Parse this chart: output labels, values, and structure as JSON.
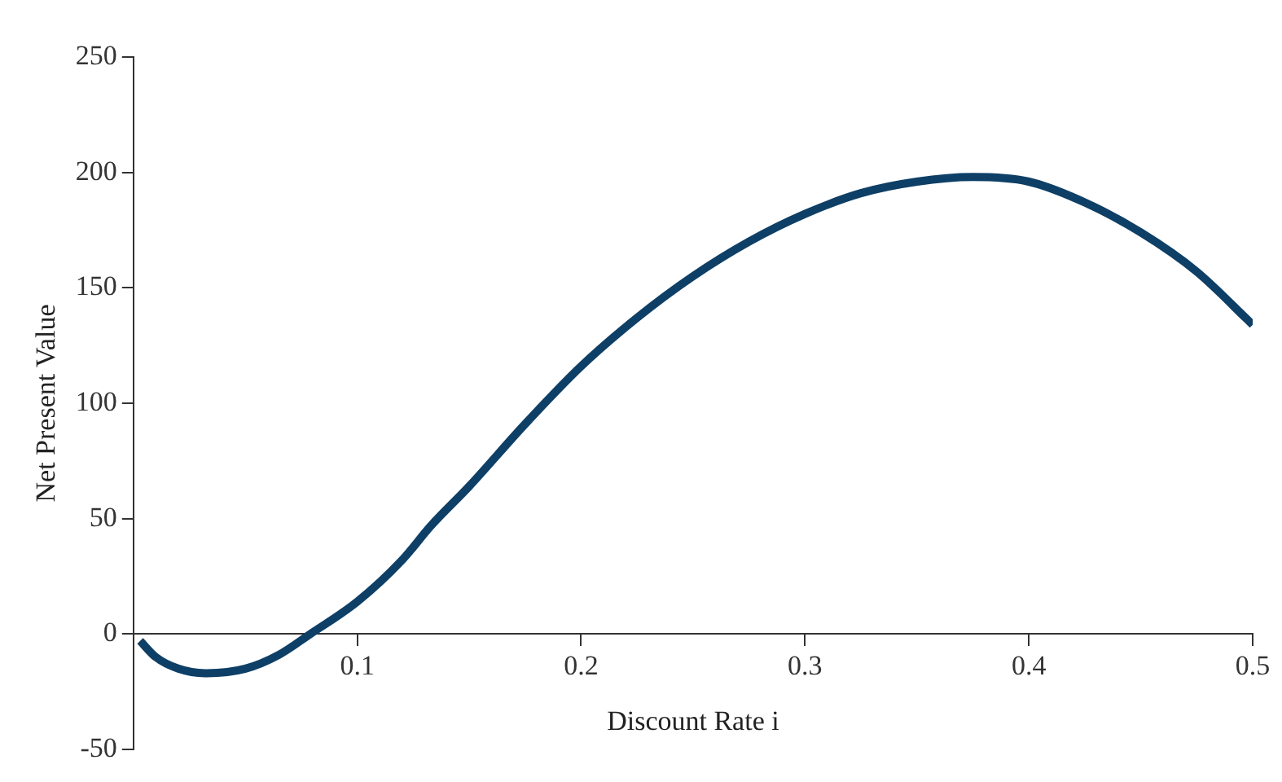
{
  "chart_data": {
    "type": "line",
    "xlabel": "Discount Rate i",
    "ylabel": "Net Present Value",
    "xlim": [
      0,
      0.5
    ],
    "xticks": [
      0.1,
      0.2,
      0.3,
      0.4,
      0.5
    ],
    "ylim": [
      -50,
      250
    ],
    "yticks": [
      -50,
      0,
      50,
      100,
      150,
      200,
      250
    ],
    "grid": false,
    "marker": "none",
    "line_style": "solid",
    "series": [
      {
        "color": "#0e3f66",
        "x": [
          0.003,
          0.01,
          0.02,
          0.032,
          0.05,
          0.065,
          0.079,
          0.1,
          0.12,
          0.133,
          0.15,
          0.175,
          0.2,
          0.225,
          0.25,
          0.275,
          0.3,
          0.325,
          0.35,
          0.375,
          0.4,
          0.425,
          0.45,
          0.475,
          0.5
        ],
        "values": [
          -3,
          -10,
          -15,
          -17,
          -15,
          -9,
          0,
          14,
          32,
          47,
          64,
          91,
          116,
          137,
          155,
          170,
          182,
          191,
          196,
          198,
          196,
          187,
          174,
          157,
          134
        ]
      }
    ]
  }
}
